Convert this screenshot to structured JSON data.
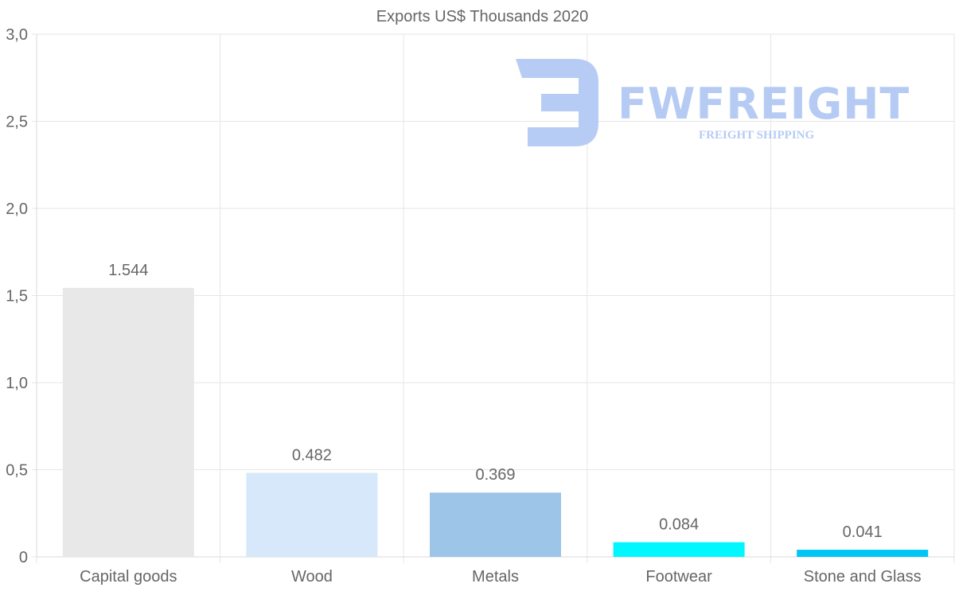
{
  "chart_data": {
    "type": "bar",
    "title": "Exports US$ Thousands 2020",
    "xlabel": "",
    "ylabel": "",
    "ylim": [
      0,
      3
    ],
    "yticks": [
      {
        "value": 0,
        "label": "0"
      },
      {
        "value": 0.5,
        "label": "0,5"
      },
      {
        "value": 1,
        "label": "1,0"
      },
      {
        "value": 1.5,
        "label": "1,5"
      },
      {
        "value": 2,
        "label": "2,0"
      },
      {
        "value": 2.5,
        "label": "2,5"
      },
      {
        "value": 3,
        "label": "3,0"
      }
    ],
    "grid": true,
    "categories": [
      "Capital goods",
      "Wood",
      "Metals",
      "Footwear",
      "Stone and Glass"
    ],
    "values": [
      1.544,
      0.482,
      0.369,
      0.084,
      0.041
    ],
    "value_labels": [
      "1.544",
      "0.482",
      "0.369",
      "0.084",
      "0.041"
    ],
    "colors": [
      "#e8e8e8",
      "#d6e8fa",
      "#9dc5e8",
      "#00f7ff",
      "#00c6f5"
    ]
  },
  "watermark": {
    "name": "FWFREIGHT",
    "tagline": "FREIGHT SHIPPING",
    "color": "#b3c9f3"
  }
}
